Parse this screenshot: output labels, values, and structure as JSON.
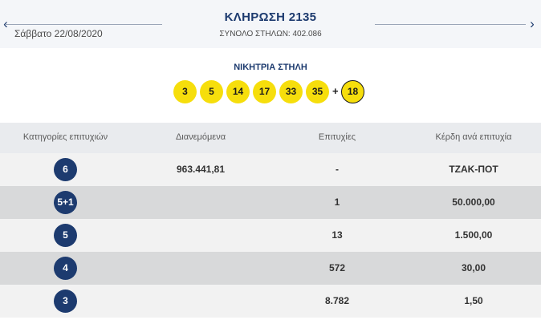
{
  "header": {
    "title": "ΚΛΗΡΩΣΗ 2135",
    "date": "Σάββατο 22/08/2020",
    "total_columns": "ΣΥΝΟΛΟ ΣΤΗΛΩΝ: 402.086",
    "prev_icon": "chevron-left-icon",
    "next_icon": "chevron-right-icon",
    "prev_glyph": "‹",
    "next_glyph": "›"
  },
  "winning": {
    "title": "ΝΙΚΗΤΡΙΑ ΣΤΗΛΗ",
    "numbers": [
      "3",
      "5",
      "14",
      "17",
      "33",
      "35"
    ],
    "plus": "+",
    "bonus": "18"
  },
  "table": {
    "headers": [
      "Κατηγορίες επιτυχιών",
      "Διανεμόμενα",
      "Επιτυχίες",
      "Κέρδη ανά επιτυχία"
    ],
    "rows": [
      {
        "category": "6",
        "distributed": "963.441,81",
        "winners": "-",
        "prize": "ΤΖΑΚ-ΠΟΤ"
      },
      {
        "category": "5+1",
        "distributed": "",
        "winners": "1",
        "prize": "50.000,00"
      },
      {
        "category": "5",
        "distributed": "",
        "winners": "13",
        "prize": "1.500,00"
      },
      {
        "category": "4",
        "distributed": "",
        "winners": "572",
        "prize": "30,00"
      },
      {
        "category": "3",
        "distributed": "",
        "winners": "8.782",
        "prize": "1,50"
      }
    ]
  },
  "colors": {
    "brand_navy": "#1d3b6f",
    "ball_yellow": "#f6de0c",
    "row_light": "#f2f2f2",
    "row_dark": "#d8d9da"
  }
}
